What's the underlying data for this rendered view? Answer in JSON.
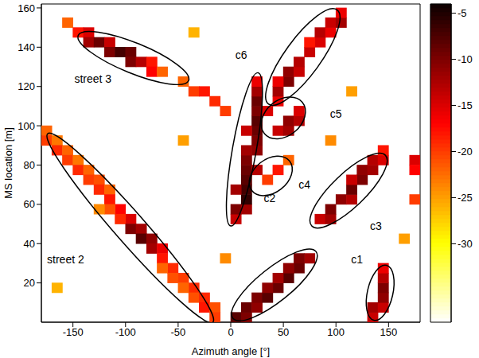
{
  "chart_data": {
    "type": "heatmap",
    "xlabel": "Azimuth angle [°]",
    "ylabel": "MS location [m]",
    "xlim": [
      -180,
      180
    ],
    "ylim": [
      0,
      162
    ],
    "xticks": [
      -150,
      -100,
      -50,
      0,
      50,
      100,
      150
    ],
    "yticks": [
      20,
      40,
      60,
      80,
      100,
      120,
      140,
      160
    ],
    "colorbar": {
      "range": [
        -38.5,
        -4
      ],
      "ticks": [
        -30,
        -25,
        -20,
        -15,
        -10,
        -5
      ]
    },
    "cells": [
      [
        -155,
        152.5,
        -22
      ],
      [
        -145,
        147.5,
        -18
      ],
      [
        -135,
        147.5,
        -15
      ],
      [
        -135,
        142.5,
        -12
      ],
      [
        -125,
        142.5,
        -9
      ],
      [
        -115,
        142.5,
        -14
      ],
      [
        -115,
        137.5,
        -10
      ],
      [
        -105,
        137.5,
        -7
      ],
      [
        -95,
        137.5,
        -9
      ],
      [
        -95,
        132.5,
        -10
      ],
      [
        -85,
        132.5,
        -13
      ],
      [
        -75,
        132.5,
        -18
      ],
      [
        -75,
        127.5,
        -17
      ],
      [
        -65,
        127.5,
        -22
      ],
      [
        -45,
        122.5,
        -22
      ],
      [
        -35,
        117.5,
        -20
      ],
      [
        -25,
        117.5,
        -18
      ],
      [
        -15,
        112.5,
        -19
      ],
      [
        -5,
        107.5,
        -20
      ],
      [
        -175,
        97.5,
        -22
      ],
      [
        -175,
        92.5,
        -20
      ],
      [
        -165,
        92.5,
        -23
      ],
      [
        -165,
        87.5,
        -19
      ],
      [
        -155,
        87.5,
        -22
      ],
      [
        -155,
        82.5,
        -20
      ],
      [
        -145,
        82.5,
        -23
      ],
      [
        -145,
        77.5,
        -19
      ],
      [
        -135,
        77.5,
        -22
      ],
      [
        -135,
        72.5,
        -20
      ],
      [
        -125,
        72.5,
        -21
      ],
      [
        -125,
        67.5,
        -19
      ],
      [
        -115,
        67.5,
        -22
      ],
      [
        -115,
        62.5,
        -18
      ],
      [
        -105,
        57.5,
        -17
      ],
      [
        -115,
        57.5,
        -21
      ],
      [
        -95,
        52.5,
        -15
      ],
      [
        -105,
        52.5,
        -19
      ],
      [
        -95,
        47.5,
        -10
      ],
      [
        -85,
        47.5,
        -12
      ],
      [
        -85,
        42.5,
        -8
      ],
      [
        -75,
        42.5,
        -11
      ],
      [
        -75,
        37.5,
        -12
      ],
      [
        -65,
        37.5,
        -16
      ],
      [
        -65,
        32.5,
        -18
      ],
      [
        -55,
        27.5,
        -19
      ],
      [
        -65,
        27.5,
        -22
      ],
      [
        -45,
        22.5,
        -20
      ],
      [
        -55,
        22.5,
        -21
      ],
      [
        -35,
        17.5,
        -19
      ],
      [
        -45,
        17.5,
        -22
      ],
      [
        -35,
        12.5,
        -21
      ],
      [
        -25,
        12.5,
        -19
      ],
      [
        -25,
        7.5,
        -18
      ],
      [
        -15,
        7.5,
        -21
      ],
      [
        -15,
        2.5,
        -20
      ],
      [
        5,
        52.5,
        -14
      ],
      [
        5,
        57.5,
        -10
      ],
      [
        15,
        57.5,
        -12
      ],
      [
        15,
        62.5,
        -6
      ],
      [
        15,
        67.5,
        -7
      ],
      [
        5,
        67.5,
        -12
      ],
      [
        15,
        72.5,
        -8
      ],
      [
        15,
        77.5,
        -9
      ],
      [
        25,
        77.5,
        -13
      ],
      [
        15,
        82.5,
        -10
      ],
      [
        15,
        87.5,
        -12
      ],
      [
        25,
        87.5,
        -11
      ],
      [
        25,
        92.5,
        -10
      ],
      [
        25,
        97.5,
        -9
      ],
      [
        15,
        97.5,
        -14
      ],
      [
        25,
        102.5,
        -8
      ],
      [
        25,
        107.5,
        -10
      ],
      [
        35,
        107.5,
        -15
      ],
      [
        25,
        112.5,
        -9
      ],
      [
        25,
        117.5,
        -12
      ],
      [
        25,
        122.5,
        -16
      ],
      [
        45,
        112.5,
        -16
      ],
      [
        45,
        117.5,
        -12
      ],
      [
        55,
        122.5,
        -10
      ],
      [
        45,
        122.5,
        -16
      ],
      [
        55,
        127.5,
        -11
      ],
      [
        65,
        127.5,
        -14
      ],
      [
        65,
        132.5,
        -13
      ],
      [
        75,
        137.5,
        -14
      ],
      [
        85,
        142.5,
        -15
      ],
      [
        75,
        142.5,
        -18
      ],
      [
        85,
        147.5,
        -13
      ],
      [
        95,
        147.5,
        -16
      ],
      [
        95,
        152.5,
        -14
      ],
      [
        105,
        152.5,
        -12
      ],
      [
        105,
        157.5,
        -16
      ],
      [
        45,
        97.5,
        -14
      ],
      [
        55,
        97.5,
        -12
      ],
      [
        55,
        102.5,
        -11
      ],
      [
        65,
        102.5,
        -13
      ],
      [
        65,
        107.5,
        -15
      ],
      [
        35,
        72.5,
        -20
      ],
      [
        45,
        77.5,
        -18
      ],
      [
        55,
        82.5,
        -22
      ],
      [
        85,
        52.5,
        -14
      ],
      [
        95,
        52.5,
        -12
      ],
      [
        95,
        57.5,
        -10
      ],
      [
        105,
        62.5,
        -11
      ],
      [
        115,
        62.5,
        -13
      ],
      [
        115,
        67.5,
        -9
      ],
      [
        125,
        72.5,
        -10
      ],
      [
        115,
        72.5,
        -14
      ],
      [
        125,
        77.5,
        -11
      ],
      [
        135,
        77.5,
        -12
      ],
      [
        135,
        82.5,
        -13
      ],
      [
        145,
        82.5,
        -15
      ],
      [
        145,
        87.5,
        -18
      ],
      [
        5,
        2.5,
        -8
      ],
      [
        15,
        2.5,
        -10
      ],
      [
        15,
        7.5,
        -9
      ],
      [
        25,
        7.5,
        -11
      ],
      [
        25,
        12.5,
        -10
      ],
      [
        35,
        12.5,
        -8
      ],
      [
        45,
        17.5,
        -9
      ],
      [
        35,
        17.5,
        -11
      ],
      [
        55,
        22.5,
        -8
      ],
      [
        45,
        22.5,
        -12
      ],
      [
        65,
        27.5,
        -9
      ],
      [
        55,
        27.5,
        -11
      ],
      [
        75,
        32.5,
        -12
      ],
      [
        65,
        32.5,
        -10
      ],
      [
        135,
        2.5,
        -14
      ],
      [
        135,
        7.5,
        -12
      ],
      [
        145,
        7.5,
        -14
      ],
      [
        145,
        12.5,
        -11
      ],
      [
        145,
        17.5,
        -10
      ],
      [
        145,
        22.5,
        -13
      ],
      [
        145,
        27.5,
        -16
      ],
      [
        175,
        82.5,
        -15
      ],
      [
        175,
        77.5,
        -17
      ],
      [
        175,
        62.5,
        -20
      ],
      [
        -125,
        57.5,
        -24
      ],
      [
        -45,
        92.5,
        -25
      ],
      [
        95,
        92.5,
        -24
      ],
      [
        165,
        42.5,
        -25
      ],
      [
        -165,
        17.5,
        -26
      ],
      [
        -5,
        32.5,
        -24
      ],
      [
        115,
        117.5,
        -25
      ],
      [
        -35,
        147.5,
        -26
      ]
    ],
    "annotations": [
      {
        "text": "street 3",
        "from": [
          -145,
          146
        ],
        "to": [
          -40,
          123
        ],
        "label_at": [
          -131,
          124
        ]
      },
      {
        "text": "street 2",
        "from": [
          -174,
          96
        ],
        "to": [
          -17,
          0
        ],
        "label_at": [
          -157,
          32
        ]
      },
      {
        "from": [
          0,
          49
        ],
        "to": [
          26,
          127
        ]
      },
      {
        "text": "c6",
        "from": [
          36,
          111
        ],
        "to": [
          101,
          159
        ],
        "label_at": [
          10,
          136
        ]
      },
      {
        "text": "c5",
        "from": [
          32,
          96
        ],
        "to": [
          68,
          112
        ],
        "label_at": [
          100,
          106
        ]
      },
      {
        "text": "c4",
        "from": [
          20,
          67
        ],
        "to": [
          56,
          82
        ],
        "label_at": [
          70,
          70
        ]
      },
      {
        "text": "c3",
        "from": [
          77,
          49
        ],
        "to": [
          147,
          85
        ],
        "label_at": [
          138,
          49
        ]
      },
      {
        "text": "c2",
        "from": [
          2,
          2
        ],
        "to": [
          81,
          36
        ],
        "label_at": [
          37,
          63
        ]
      },
      {
        "text": "c1",
        "from": [
          136,
          1
        ],
        "to": [
          148,
          29
        ],
        "label_at": [
          120,
          32
        ]
      }
    ]
  }
}
